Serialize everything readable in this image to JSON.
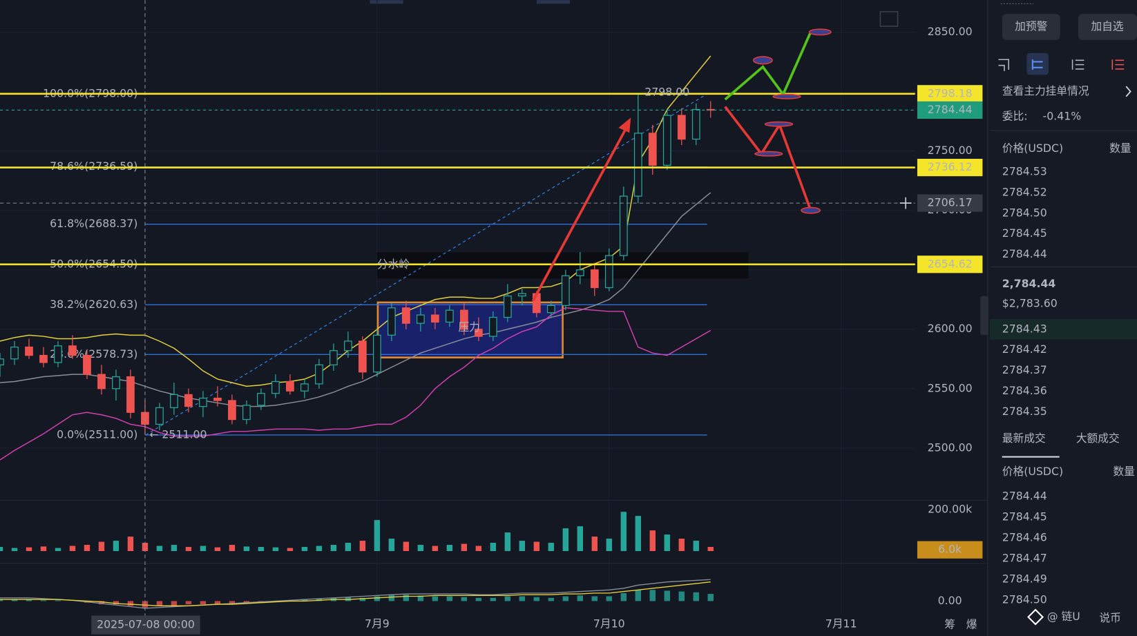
{
  "chart_data": {
    "type": "candlestick",
    "x": [
      "2025-07-07 09:00",
      "2025-07-07 10:30",
      "2025-07-07 12:00",
      "2025-07-07 13:30",
      "2025-07-07 15:00",
      "2025-07-07 16:30",
      "2025-07-07 18:00",
      "2025-07-07 19:30",
      "2025-07-07 21:00",
      "2025-07-07 22:30",
      "2025-07-08 00:00",
      "2025-07-08 01:30",
      "2025-07-08 03:00",
      "2025-07-08 04:30",
      "2025-07-08 06:00",
      "2025-07-08 07:30",
      "2025-07-08 09:00",
      "2025-07-08 10:30",
      "2025-07-08 12:00",
      "2025-07-08 13:30",
      "2025-07-08 15:00",
      "2025-07-08 16:30",
      "2025-07-08 18:00",
      "2025-07-08 19:30",
      "2025-07-08 21:00",
      "2025-07-08 22:30",
      "2025-07-09 00:00",
      "2025-07-09 01:30",
      "2025-07-09 03:00",
      "2025-07-09 04:30",
      "2025-07-09 06:00",
      "2025-07-09 07:30",
      "2025-07-09 09:00",
      "2025-07-09 10:30",
      "2025-07-09 12:00",
      "2025-07-09 13:30",
      "2025-07-09 15:00",
      "2025-07-09 16:30",
      "2025-07-09 18:00",
      "2025-07-09 19:30",
      "2025-07-09 21:00",
      "2025-07-09 22:30",
      "2025-07-10 00:00",
      "2025-07-10 01:30",
      "2025-07-10 03:00",
      "2025-07-10 04:30",
      "2025-07-10 06:00",
      "2025-07-10 07:30",
      "2025-07-10 09:00",
      "2025-07-10 10:30"
    ],
    "open": [
      2570,
      2575,
      2585,
      2578,
      2572,
      2586,
      2578,
      2562,
      2550,
      2560,
      2530,
      2520,
      2534,
      2545,
      2535,
      2542,
      2540,
      2524,
      2536,
      2546,
      2556,
      2548,
      2554,
      2570,
      2582,
      2590,
      2564,
      2595,
      2618,
      2605,
      2612,
      2606,
      2616,
      2600,
      2594,
      2610,
      2628,
      2630,
      2614,
      2620,
      2645,
      2650,
      2635,
      2662,
      2712,
      2765,
      2738,
      2780,
      2760,
      2785
    ],
    "high": [
      2580,
      2590,
      2592,
      2585,
      2590,
      2595,
      2582,
      2570,
      2566,
      2566,
      2540,
      2538,
      2555,
      2550,
      2548,
      2552,
      2545,
      2540,
      2550,
      2562,
      2562,
      2558,
      2575,
      2588,
      2598,
      2594,
      2600,
      2622,
      2624,
      2618,
      2618,
      2620,
      2622,
      2610,
      2615,
      2638,
      2634,
      2632,
      2624,
      2650,
      2665,
      2656,
      2668,
      2720,
      2798,
      2772,
      2785,
      2786,
      2790,
      2792
    ],
    "low": [
      2560,
      2570,
      2575,
      2568,
      2568,
      2575,
      2558,
      2545,
      2540,
      2525,
      2511,
      2515,
      2528,
      2530,
      2526,
      2535,
      2520,
      2520,
      2532,
      2542,
      2545,
      2542,
      2550,
      2565,
      2576,
      2558,
      2560,
      2590,
      2600,
      2598,
      2600,
      2602,
      2595,
      2590,
      2590,
      2606,
      2620,
      2610,
      2610,
      2616,
      2638,
      2628,
      2632,
      2658,
      2706,
      2730,
      2734,
      2755,
      2755,
      2778
    ],
    "close": [
      2575,
      2585,
      2578,
      2572,
      2586,
      2578,
      2562,
      2550,
      2560,
      2530,
      2520,
      2534,
      2545,
      2535,
      2542,
      2540,
      2524,
      2536,
      2546,
      2556,
      2548,
      2554,
      2570,
      2582,
      2590,
      2564,
      2595,
      2618,
      2605,
      2612,
      2606,
      2616,
      2600,
      2594,
      2610,
      2628,
      2630,
      2614,
      2620,
      2645,
      2650,
      2635,
      2662,
      2712,
      2765,
      2738,
      2780,
      2760,
      2785,
      2784.44
    ],
    "up_color": "#26a69a",
    "down_color": "#ef5350",
    "overlays": [
      {
        "color": "#e6d23a",
        "values": [
          2590,
          2593,
          2595,
          2594,
          2592,
          2592,
          2593,
          2595,
          2596,
          2595,
          2595,
          2590,
          2584,
          2575,
          2565,
          2558,
          2555,
          2552,
          2553,
          2555,
          2556,
          2558,
          2563,
          2572,
          2582,
          2590,
          2600,
          2610,
          2615,
          2620,
          2625,
          2627,
          2627,
          2626,
          2626,
          2630,
          2635,
          2635,
          2636,
          2640,
          2650,
          2655,
          2660,
          2670,
          2740,
          2760,
          2785,
          2800,
          2815,
          2830
        ]
      },
      {
        "color": "#8a8e99",
        "values": [
          2555,
          2556,
          2558,
          2560,
          2561,
          2562,
          2562,
          2560,
          2558,
          2556,
          2552,
          2548,
          2545,
          2542,
          2540,
          2538,
          2536,
          2535,
          2535,
          2536,
          2538,
          2540,
          2543,
          2547,
          2552,
          2556,
          2562,
          2568,
          2574,
          2580,
          2584,
          2588,
          2592,
          2595,
          2597,
          2600,
          2603,
          2606,
          2610,
          2613,
          2616,
          2620,
          2625,
          2635,
          2650,
          2665,
          2680,
          2695,
          2705,
          2715
        ]
      },
      {
        "color": "#d63fb0",
        "values": [
          2490,
          2498,
          2505,
          2512,
          2520,
          2528,
          2530,
          2528,
          2525,
          2520,
          2518,
          2513,
          2510,
          2510,
          2510,
          2512,
          2514,
          2514,
          2515,
          2516,
          2516,
          2516,
          2515,
          2516,
          2516,
          2518,
          2520,
          2520,
          2526,
          2536,
          2550,
          2560,
          2568,
          2578,
          2584,
          2592,
          2598,
          2602,
          2612,
          2618,
          2617,
          2616,
          2615,
          2615,
          2585,
          2580,
          2578,
          2585,
          2592,
          2599
        ]
      }
    ],
    "ylim": [
      2456,
      2877
    ],
    "yticks": [
      {
        "value": 2500,
        "label": "2500.00"
      },
      {
        "value": 2550,
        "label": "2550.00"
      },
      {
        "value": 2600,
        "label": "2600.00"
      },
      {
        "value": 2650,
        "label": "2650.00"
      },
      {
        "value": 2700,
        "label": "2700.00"
      },
      {
        "value": 2750,
        "label": "2750.00"
      },
      {
        "value": 2800,
        "label": "2800.00"
      },
      {
        "value": 2850,
        "label": "2850.00"
      }
    ],
    "xticks": [
      {
        "value": "2025-07-09 00:00",
        "label": "7月9"
      },
      {
        "value": "2025-07-10 00:00",
        "label": "7月10"
      },
      {
        "value": "2025-07-11 00:00",
        "label": "7月11"
      }
    ],
    "grid": true,
    "fib_levels": [
      {
        "value": 2798,
        "label": "100.0%(2798.00)"
      },
      {
        "value": 2736.59,
        "label": "78.6%(2736.59)"
      },
      {
        "value": 2688.37,
        "label": "61.8%(2688.37)"
      },
      {
        "value": 2654.5,
        "label": "50.0%(2654.50)"
      },
      {
        "value": 2620.63,
        "label": "38.2%(2620.63)"
      },
      {
        "value": 2578.73,
        "label": "23.6%(2578.73)"
      },
      {
        "value": 2511,
        "label": "0.0%(2511.00)"
      }
    ],
    "price_lines": [
      {
        "value": 2798.18,
        "color": "#f5e52a"
      },
      {
        "value": 2736.12,
        "color": "#f5e52a"
      },
      {
        "value": 2654.62,
        "color": "#f5e52a"
      }
    ],
    "last_price": {
      "value": 2784.44,
      "color": "#1f9c7c"
    },
    "crosshair": {
      "value": 2706.17,
      "x": "2025-07-08 00:00"
    },
    "high_marker": {
      "value": 2798,
      "label": "2798.00"
    },
    "low_marker": {
      "value": 2511,
      "label": "← 2511.00"
    },
    "annotations": [
      "分水岭",
      "压力"
    ],
    "volume": {
      "values": [
        20000,
        15000,
        18000,
        22000,
        15000,
        25000,
        30000,
        45000,
        50000,
        70000,
        40000,
        25000,
        30000,
        20000,
        25000,
        18000,
        30000,
        22000,
        20000,
        18000,
        15000,
        20000,
        25000,
        30000,
        40000,
        50000,
        150000,
        60000,
        45000,
        30000,
        25000,
        30000,
        35000,
        25000,
        40000,
        90000,
        50000,
        45000,
        40000,
        110000,
        120000,
        70000,
        60000,
        190000,
        170000,
        100000,
        80000,
        60000,
        50000,
        20000
      ],
      "ylim": [
        0,
        245600
      ],
      "yticks": [
        {
          "value": 200000,
          "label": "200.00k"
        }
      ],
      "tag": {
        "value": 6000,
        "label": "6.0k"
      }
    },
    "macd": {
      "hist": [
        1,
        1,
        1,
        0.5,
        0.5,
        0,
        -1,
        -2,
        -2,
        -3,
        -4,
        -3,
        -3,
        -2,
        -2,
        -2,
        -1.5,
        -1,
        -0.5,
        0,
        0.5,
        1,
        1.5,
        2,
        2.5,
        2,
        3,
        4,
        4,
        3.5,
        3,
        3,
        2.5,
        2,
        2,
        3,
        3,
        2.5,
        2,
        3,
        3.5,
        3,
        3,
        5,
        7,
        7,
        6.5,
        6,
        5.5,
        4.5
      ],
      "dif": [
        2,
        2,
        2,
        1.5,
        1,
        0.5,
        -0.5,
        -1.5,
        -2.5,
        -3.5,
        -4.5,
        -4,
        -3.5,
        -3,
        -2.5,
        -2,
        -1.5,
        -1,
        -0.5,
        0,
        0.5,
        1,
        1.5,
        2,
        2.5,
        3,
        3.5,
        4,
        4.5,
        4.5,
        4.5,
        4.5,
        4.5,
        4,
        4,
        4.5,
        5,
        5,
        5,
        5.5,
        6,
        6.5,
        7,
        8,
        10,
        11,
        12,
        12.5,
        13,
        13.5
      ],
      "dea": [
        1,
        1,
        1,
        1,
        1,
        0.5,
        0,
        -0.5,
        -1.5,
        -2,
        -2.5,
        -3,
        -3,
        -3,
        -2.5,
        -2,
        -2,
        -1.5,
        -1,
        -0.5,
        0,
        0,
        0.5,
        1,
        1,
        1.5,
        2,
        2.5,
        3,
        3,
        3.5,
        3.5,
        3.5,
        3.5,
        3.5,
        3.5,
        4,
        4,
        4,
        4.5,
        4.5,
        5,
        5,
        6,
        7,
        8,
        9,
        10,
        11,
        12
      ],
      "ylim": [
        -10,
        20
      ],
      "yticks": [
        {
          "value": 0,
          "label": "0.00"
        }
      ]
    },
    "axis_tools": [
      "筹",
      "爆"
    ]
  },
  "side_panel": {
    "buttons": [
      "加预警",
      "加自选"
    ],
    "depth_link": "查看主力挂单情况",
    "ratio_label": "委比:",
    "ratio": "-0.41%",
    "headers": [
      "价格(USDC)",
      "数量"
    ],
    "asks": [
      "2784.53",
      "2784.52",
      "2784.50",
      "2784.45",
      "2784.44"
    ],
    "last_price": "2,784.44",
    "last_price_usd": "$2,783.60",
    "bids": [
      "2784.43",
      "2784.42",
      "2784.37",
      "2784.36",
      "2784.35"
    ],
    "tabs": [
      "最新成交",
      "大额成交"
    ],
    "trade_headers": [
      "价格(USDC)",
      "数量"
    ],
    "trades": [
      "2784.44",
      "2784.45",
      "2784.46",
      "2784.47",
      "2784.49",
      "2784.50"
    ]
  },
  "watermark": {
    "handle": "@ 链U",
    "text": "说币"
  }
}
